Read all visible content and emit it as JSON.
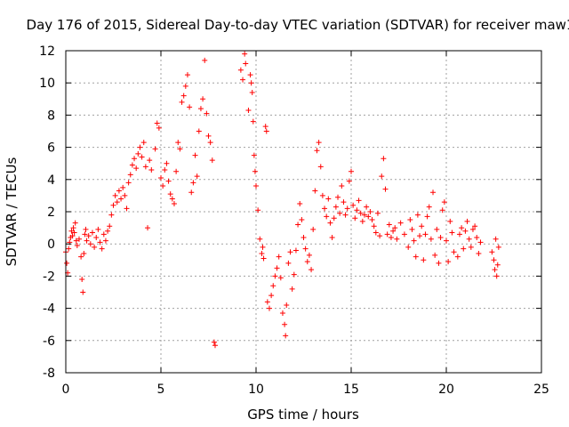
{
  "chart_data": {
    "type": "scatter",
    "title": "Day 176 of 2015, Sidereal Day-to-day VTEC variation (SDTVAR) for receiver maw1",
    "xlabel": "GPS time / hours",
    "ylabel": "SDTVAR / TECUs",
    "xlim": [
      0,
      25
    ],
    "ylim": [
      -8,
      12
    ],
    "xticks": [
      0,
      5,
      10,
      15,
      20,
      25
    ],
    "yticks": [
      -8,
      -6,
      -4,
      -2,
      0,
      2,
      4,
      6,
      8,
      10,
      12
    ],
    "grid": true,
    "marker": "+",
    "series": [
      {
        "name": "SDTVAR",
        "color": "#ff0000",
        "points": [
          [
            0.0,
            -0.5
          ],
          [
            0.05,
            -1.2
          ],
          [
            0.1,
            -1.8
          ],
          [
            0.15,
            -0.3
          ],
          [
            0.2,
            0.1
          ],
          [
            0.25,
            0.4
          ],
          [
            0.3,
            0.8
          ],
          [
            0.35,
            0.5
          ],
          [
            0.4,
            1.0
          ],
          [
            0.45,
            0.7
          ],
          [
            0.5,
            1.3
          ],
          [
            0.55,
            0.2
          ],
          [
            0.6,
            -0.1
          ],
          [
            0.7,
            0.3
          ],
          [
            0.8,
            -0.8
          ],
          [
            0.85,
            -2.2
          ],
          [
            0.9,
            -3.0
          ],
          [
            0.95,
            -0.6
          ],
          [
            1.0,
            0.6
          ],
          [
            1.05,
            0.9
          ],
          [
            1.1,
            0.2
          ],
          [
            1.2,
            0.5
          ],
          [
            1.3,
            0.0
          ],
          [
            1.4,
            0.7
          ],
          [
            1.5,
            -0.2
          ],
          [
            1.6,
            0.4
          ],
          [
            1.7,
            0.9
          ],
          [
            1.8,
            0.1
          ],
          [
            1.9,
            -0.3
          ],
          [
            2.0,
            0.6
          ],
          [
            2.1,
            0.2
          ],
          [
            2.2,
            0.8
          ],
          [
            2.3,
            1.1
          ],
          [
            2.4,
            1.8
          ],
          [
            2.5,
            2.4
          ],
          [
            2.6,
            3.0
          ],
          [
            2.7,
            2.6
          ],
          [
            2.8,
            3.3
          ],
          [
            2.9,
            2.8
          ],
          [
            3.0,
            3.5
          ],
          [
            3.1,
            3.0
          ],
          [
            3.2,
            2.2
          ],
          [
            3.3,
            3.8
          ],
          [
            3.4,
            4.3
          ],
          [
            3.5,
            4.9
          ],
          [
            3.6,
            5.3
          ],
          [
            3.7,
            4.7
          ],
          [
            3.8,
            5.6
          ],
          [
            3.9,
            6.0
          ],
          [
            4.0,
            5.4
          ],
          [
            4.1,
            6.3
          ],
          [
            4.2,
            4.8
          ],
          [
            4.3,
            1.0
          ],
          [
            4.4,
            5.2
          ],
          [
            4.5,
            4.6
          ],
          [
            4.7,
            5.9
          ],
          [
            4.8,
            7.5
          ],
          [
            4.9,
            7.2
          ],
          [
            5.0,
            4.1
          ],
          [
            5.1,
            3.6
          ],
          [
            5.2,
            4.6
          ],
          [
            5.3,
            5.0
          ],
          [
            5.4,
            3.9
          ],
          [
            5.5,
            3.1
          ],
          [
            5.6,
            2.8
          ],
          [
            5.7,
            2.5
          ],
          [
            5.8,
            4.5
          ],
          [
            5.9,
            6.3
          ],
          [
            6.0,
            5.9
          ],
          [
            6.1,
            8.8
          ],
          [
            6.2,
            9.2
          ],
          [
            6.3,
            9.8
          ],
          [
            6.4,
            10.5
          ],
          [
            6.5,
            8.5
          ],
          [
            6.6,
            3.2
          ],
          [
            6.7,
            3.8
          ],
          [
            6.8,
            5.5
          ],
          [
            6.9,
            4.2
          ],
          [
            7.0,
            7.0
          ],
          [
            7.1,
            8.4
          ],
          [
            7.2,
            9.0
          ],
          [
            7.3,
            11.4
          ],
          [
            7.4,
            8.1
          ],
          [
            7.5,
            6.7
          ],
          [
            7.6,
            6.3
          ],
          [
            7.7,
            5.2
          ],
          [
            7.8,
            -6.1
          ],
          [
            7.85,
            -6.3
          ],
          [
            9.2,
            10.8
          ],
          [
            9.3,
            10.2
          ],
          [
            9.4,
            11.8
          ],
          [
            9.45,
            11.2
          ],
          [
            9.6,
            8.3
          ],
          [
            9.7,
            10.5
          ],
          [
            9.75,
            10.0
          ],
          [
            9.8,
            9.4
          ],
          [
            9.85,
            7.6
          ],
          [
            9.9,
            5.5
          ],
          [
            9.95,
            4.5
          ],
          [
            10.0,
            3.6
          ],
          [
            10.1,
            2.1
          ],
          [
            10.2,
            0.3
          ],
          [
            10.3,
            -0.6
          ],
          [
            10.35,
            -0.2
          ],
          [
            10.4,
            -0.9
          ],
          [
            10.5,
            7.3
          ],
          [
            10.55,
            7.0
          ],
          [
            10.6,
            -3.6
          ],
          [
            10.7,
            -4.0
          ],
          [
            10.8,
            -3.2
          ],
          [
            10.9,
            -2.6
          ],
          [
            11.0,
            -2.0
          ],
          [
            11.1,
            -1.5
          ],
          [
            11.2,
            -0.8
          ],
          [
            11.3,
            -2.1
          ],
          [
            11.4,
            -4.3
          ],
          [
            11.5,
            -5.0
          ],
          [
            11.55,
            -5.7
          ],
          [
            11.6,
            -3.8
          ],
          [
            11.7,
            -1.2
          ],
          [
            11.8,
            -0.5
          ],
          [
            11.9,
            -2.8
          ],
          [
            12.0,
            -1.9
          ],
          [
            12.1,
            -0.4
          ],
          [
            12.2,
            1.2
          ],
          [
            12.3,
            2.5
          ],
          [
            12.4,
            1.5
          ],
          [
            12.5,
            0.4
          ],
          [
            12.6,
            -0.3
          ],
          [
            12.7,
            -1.1
          ],
          [
            12.8,
            -0.7
          ],
          [
            12.9,
            -1.6
          ],
          [
            13.0,
            0.9
          ],
          [
            13.1,
            3.3
          ],
          [
            13.2,
            5.8
          ],
          [
            13.3,
            6.3
          ],
          [
            13.4,
            4.8
          ],
          [
            13.5,
            3.0
          ],
          [
            13.6,
            2.2
          ],
          [
            13.7,
            1.7
          ],
          [
            13.8,
            2.8
          ],
          [
            13.9,
            1.3
          ],
          [
            14.0,
            0.4
          ],
          [
            14.1,
            1.6
          ],
          [
            14.2,
            2.3
          ],
          [
            14.3,
            2.9
          ],
          [
            14.4,
            1.9
          ],
          [
            14.5,
            3.6
          ],
          [
            14.6,
            2.6
          ],
          [
            14.7,
            1.8
          ],
          [
            14.8,
            2.2
          ],
          [
            14.9,
            3.9
          ],
          [
            15.0,
            4.5
          ],
          [
            15.1,
            2.4
          ],
          [
            15.2,
            1.6
          ],
          [
            15.3,
            2.1
          ],
          [
            15.4,
            2.7
          ],
          [
            15.5,
            1.9
          ],
          [
            15.6,
            1.4
          ],
          [
            15.7,
            1.8
          ],
          [
            15.8,
            2.3
          ],
          [
            15.9,
            1.7
          ],
          [
            16.0,
            2.0
          ],
          [
            16.1,
            1.5
          ],
          [
            16.2,
            1.1
          ],
          [
            16.3,
            0.7
          ],
          [
            16.4,
            1.9
          ],
          [
            16.5,
            0.5
          ],
          [
            16.6,
            4.2
          ],
          [
            16.7,
            5.3
          ],
          [
            16.8,
            3.4
          ],
          [
            16.9,
            0.6
          ],
          [
            17.0,
            1.2
          ],
          [
            17.1,
            0.4
          ],
          [
            17.2,
            0.8
          ],
          [
            17.3,
            1.0
          ],
          [
            17.4,
            0.3
          ],
          [
            17.6,
            1.3
          ],
          [
            17.8,
            0.6
          ],
          [
            18.0,
            -0.2
          ],
          [
            18.1,
            1.5
          ],
          [
            18.2,
            0.9
          ],
          [
            18.3,
            0.2
          ],
          [
            18.4,
            -0.8
          ],
          [
            18.5,
            1.8
          ],
          [
            18.6,
            0.5
          ],
          [
            18.7,
            1.1
          ],
          [
            18.8,
            -1.0
          ],
          [
            18.9,
            0.6
          ],
          [
            19.0,
            1.7
          ],
          [
            19.1,
            2.3
          ],
          [
            19.2,
            0.3
          ],
          [
            19.3,
            3.2
          ],
          [
            19.4,
            -0.7
          ],
          [
            19.5,
            0.9
          ],
          [
            19.6,
            -1.2
          ],
          [
            19.7,
            0.4
          ],
          [
            19.8,
            2.1
          ],
          [
            19.9,
            2.6
          ],
          [
            20.0,
            0.2
          ],
          [
            20.1,
            -1.1
          ],
          [
            20.2,
            1.4
          ],
          [
            20.3,
            0.7
          ],
          [
            20.4,
            -0.5
          ],
          [
            20.6,
            -0.8
          ],
          [
            20.7,
            0.6
          ],
          [
            20.8,
            1.0
          ],
          [
            20.9,
            -0.3
          ],
          [
            21.0,
            0.8
          ],
          [
            21.1,
            1.4
          ],
          [
            21.2,
            0.3
          ],
          [
            21.3,
            -0.2
          ],
          [
            21.4,
            0.9
          ],
          [
            21.5,
            1.1
          ],
          [
            21.6,
            0.4
          ],
          [
            21.7,
            -0.6
          ],
          [
            21.8,
            0.1
          ],
          [
            22.4,
            -0.5
          ],
          [
            22.5,
            -1.0
          ],
          [
            22.55,
            -1.6
          ],
          [
            22.6,
            0.3
          ],
          [
            22.65,
            -2.0
          ],
          [
            22.7,
            -1.3
          ],
          [
            22.75,
            -0.2
          ]
        ]
      }
    ]
  }
}
